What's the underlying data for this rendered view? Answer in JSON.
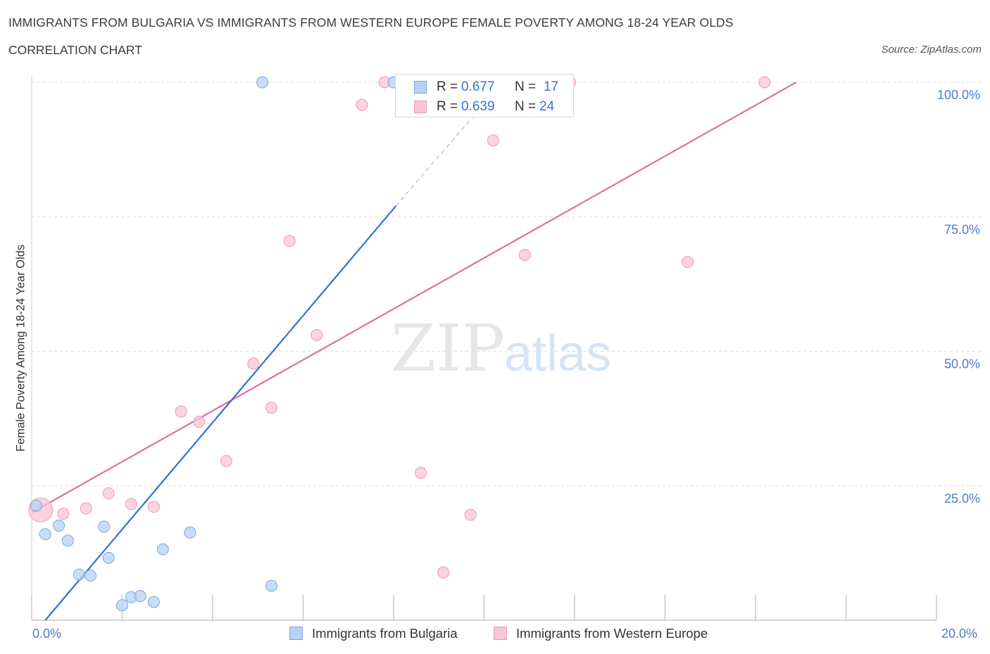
{
  "title": "IMMIGRANTS FROM BULGARIA VS IMMIGRANTS FROM WESTERN EUROPE FEMALE POVERTY AMONG 18-24 YEAR OLDS",
  "subtitle": "CORRELATION CHART",
  "source": "Source: ZipAtlas.com",
  "watermark": {
    "zip": "ZIP",
    "atlas": "atlas"
  },
  "legend": {
    "bulgaria": {
      "r_label": "R =",
      "r_value": "0.677",
      "n_label": "N =",
      "n_value": "17"
    },
    "western_europe": {
      "r_label": "R =",
      "r_value": "0.639",
      "n_label": "N =",
      "n_value": "24"
    }
  },
  "colors": {
    "bulgaria_fill": "#b8d2f3",
    "bulgaria_stroke": "#7aa6de",
    "bulgaria_line": "#2f73d0",
    "we_fill": "#f8c6d5",
    "we_stroke": "#ee9ab4",
    "we_line": "#e0709a",
    "grid": "#dddddd",
    "tick_text": "#4a7fc9"
  },
  "chart_data": {
    "type": "scatter",
    "title": "IMMIGRANTS FROM BULGARIA VS IMMIGRANTS FROM WESTERN EUROPE FEMALE POVERTY AMONG 18-24 YEAR OLDS",
    "xlabel": "",
    "ylabel": "Female Poverty Among 18-24 Year Olds",
    "xlim": [
      0,
      20
    ],
    "ylim": [
      0,
      100
    ],
    "x_tick_labels": [
      "0.0%",
      "20.0%"
    ],
    "y_ticks": [
      25,
      50,
      75,
      100
    ],
    "y_tick_labels": [
      "25.0%",
      "50.0%",
      "75.0%",
      "100.0%"
    ],
    "grid": true,
    "legend_position": "top-center",
    "series": [
      {
        "name": "Immigrants from Bulgaria",
        "points": [
          [
            0.1,
            21.3
          ],
          [
            0.3,
            16
          ],
          [
            0.6,
            17.6
          ],
          [
            0.8,
            14.8
          ],
          [
            1.05,
            8.5
          ],
          [
            1.3,
            8.3
          ],
          [
            1.6,
            17.4
          ],
          [
            1.7,
            11.6
          ],
          [
            2.0,
            2.8
          ],
          [
            2.2,
            4.3
          ],
          [
            2.4,
            4.5
          ],
          [
            2.7,
            3.4
          ],
          [
            2.9,
            13.2
          ],
          [
            3.5,
            16.3
          ],
          [
            5.1,
            100
          ],
          [
            5.3,
            6.4
          ],
          [
            8.0,
            100
          ]
        ],
        "trend": {
          "x0": 0.3,
          "y0": 0,
          "x1": 8.05,
          "y1": 77,
          "dashed_to": [
            10.0,
            96
          ]
        }
      },
      {
        "name": "Immigrants from Western Europe",
        "points": [
          [
            0.2,
            20.5
          ],
          [
            0.7,
            19.8
          ],
          [
            1.2,
            20.8
          ],
          [
            1.7,
            23.6
          ],
          [
            2.2,
            21.6
          ],
          [
            2.7,
            21.1
          ],
          [
            3.3,
            38.8
          ],
          [
            3.7,
            36.9
          ],
          [
            4.3,
            29.6
          ],
          [
            4.9,
            47.7
          ],
          [
            5.3,
            39.5
          ],
          [
            5.7,
            70.5
          ],
          [
            6.3,
            53
          ],
          [
            7.3,
            95.8
          ],
          [
            7.8,
            100
          ],
          [
            8.2,
            100
          ],
          [
            8.6,
            27.4
          ],
          [
            9.1,
            8.9
          ],
          [
            9.7,
            19.6
          ],
          [
            10.2,
            89.2
          ],
          [
            10.9,
            67.9
          ],
          [
            11.9,
            100
          ],
          [
            14.5,
            66.6
          ],
          [
            16.2,
            100
          ]
        ],
        "trend": {
          "x0": 0,
          "y0": 20,
          "x1": 16.9,
          "y1": 100
        }
      }
    ]
  },
  "bottom_legend": {
    "bulgaria": "Immigrants from Bulgaria",
    "western_europe": "Immigrants from Western Europe"
  }
}
